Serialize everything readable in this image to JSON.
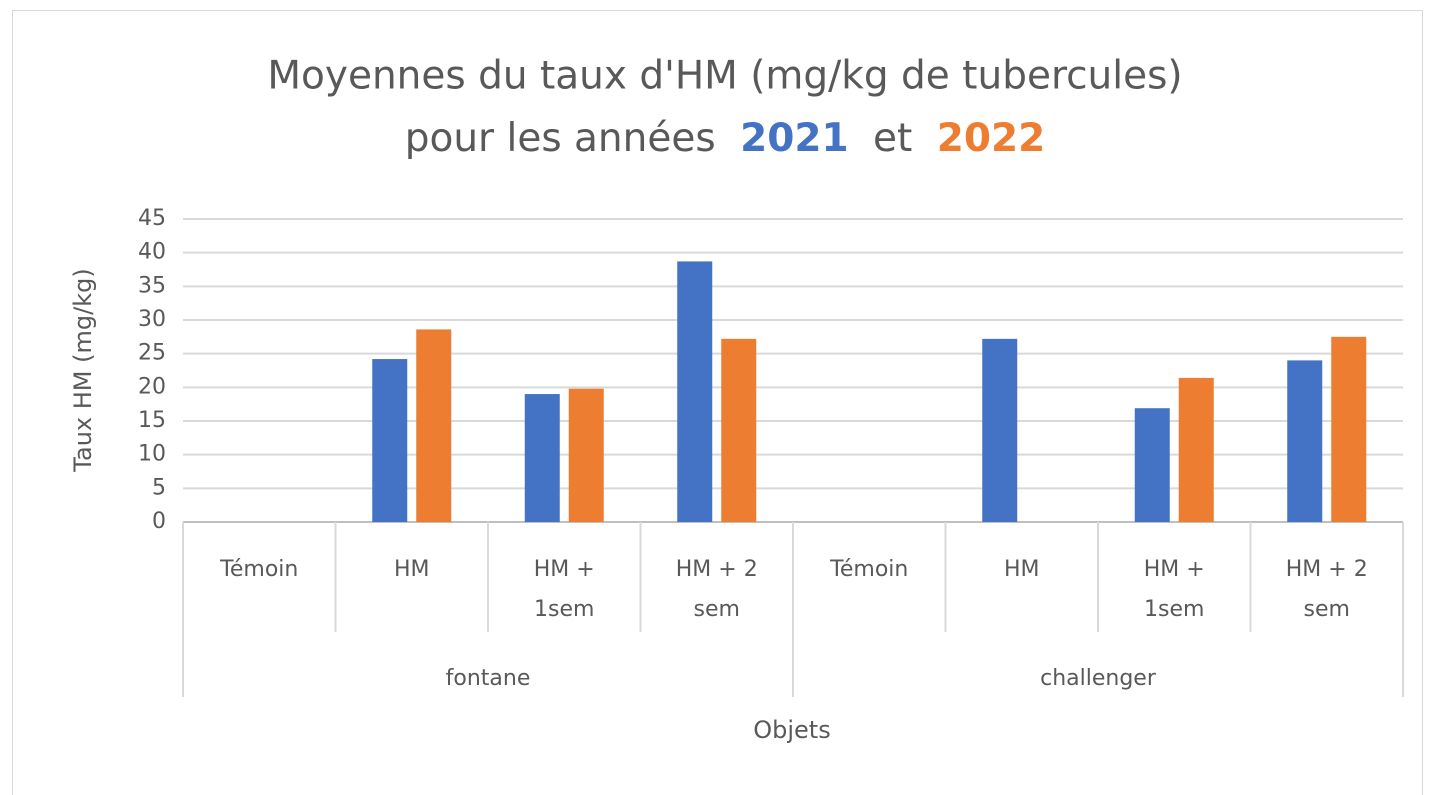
{
  "chart_data": {
    "type": "bar",
    "title": {
      "line1": "Moyennes du taux d'HM (mg/kg de tubercules)",
      "line2_start": "pour les années",
      "line2_join": "et"
    },
    "x_label": "Objets",
    "y_label": "Taux HM (mg/kg)",
    "groups": [
      "fontane",
      "challenger"
    ],
    "categories": [
      "Témoin",
      "HM",
      "HM + 1sem",
      "HM + 2 sem",
      "Témoin",
      "HM",
      "HM + 1sem",
      "HM + 2 sem"
    ],
    "series": [
      {
        "name": "2021",
        "color": "#4472c4",
        "values": [
          null,
          24.2,
          19,
          38.7,
          null,
          27.2,
          16.9,
          24
        ]
      },
      {
        "name": "2022",
        "color": "#ed7d31",
        "values": [
          null,
          28.6,
          19.8,
          27.2,
          null,
          null,
          21.4,
          27.5
        ]
      }
    ],
    "ylim": [
      0,
      45
    ],
    "yticks": [
      0,
      5,
      10,
      15,
      20,
      25,
      30,
      35,
      40,
      45
    ],
    "grid": true
  }
}
